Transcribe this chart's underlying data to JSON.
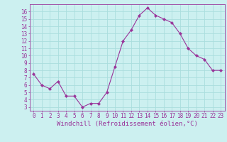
{
  "x": [
    0,
    1,
    2,
    3,
    4,
    5,
    6,
    7,
    8,
    9,
    10,
    11,
    12,
    13,
    14,
    15,
    16,
    17,
    18,
    19,
    20,
    21,
    22,
    23
  ],
  "y": [
    7.5,
    6.0,
    5.5,
    6.5,
    4.5,
    4.5,
    3.0,
    3.5,
    3.5,
    5.0,
    8.5,
    12.0,
    13.5,
    15.5,
    16.5,
    15.5,
    15.0,
    14.5,
    13.0,
    11.0,
    10.0,
    9.5,
    8.0,
    8.0
  ],
  "xlim": [
    -0.5,
    23.5
  ],
  "ylim": [
    2.5,
    17.0
  ],
  "yticks": [
    3,
    4,
    5,
    6,
    7,
    8,
    9,
    10,
    11,
    12,
    13,
    14,
    15,
    16
  ],
  "xticks": [
    0,
    1,
    2,
    3,
    4,
    5,
    6,
    7,
    8,
    9,
    10,
    11,
    12,
    13,
    14,
    15,
    16,
    17,
    18,
    19,
    20,
    21,
    22,
    23
  ],
  "xlabel": "Windchill (Refroidissement éolien,°C)",
  "line_color": "#993399",
  "marker": "D",
  "marker_size": 2.2,
  "bg_color": "#ccf0f0",
  "grid_color": "#aadddd",
  "axis_color": "#993399",
  "tick_color": "#993399",
  "label_color": "#993399",
  "tick_fontsize": 5.5,
  "xlabel_fontsize": 6.5
}
